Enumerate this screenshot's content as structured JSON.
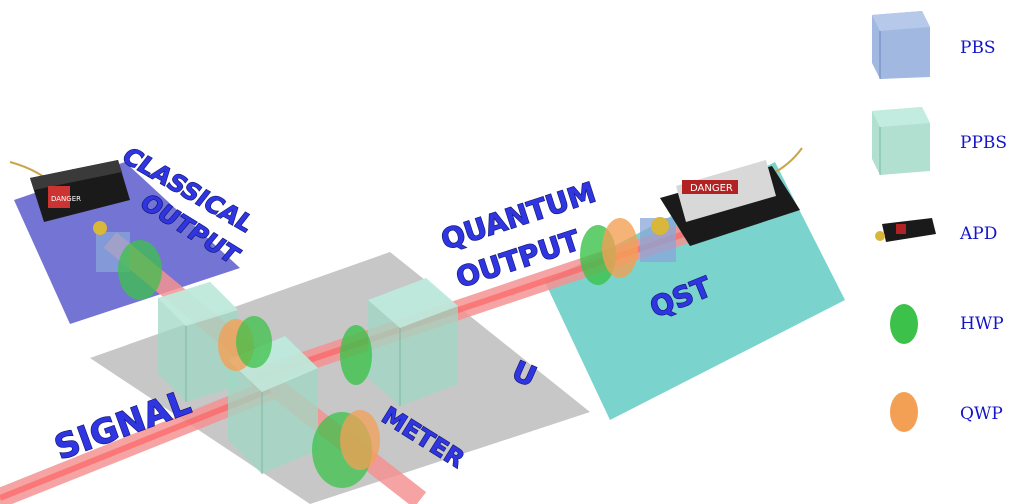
{
  "labels": {
    "classical_output": [
      "CLASSICAL",
      "OUTPUT"
    ],
    "quantum_output": [
      "QUANTUM",
      "OUTPUT"
    ],
    "signal": "SIGNAL",
    "meter": "METER",
    "u": "U",
    "qst": "QST",
    "danger": "DANGER"
  },
  "legend": [
    {
      "label": "PBS",
      "icon": "pbs-cube-icon",
      "color": "#8aa6d8"
    },
    {
      "label": "PPBS",
      "icon": "ppbs-cube-icon",
      "color": "#9fd8c4"
    },
    {
      "label": "APD",
      "icon": "apd-detector-icon",
      "color": "#222222"
    },
    {
      "label": "HWP",
      "icon": "hwp-plate-icon",
      "color": "#3cc24a"
    },
    {
      "label": "QWP",
      "icon": "qwp-plate-icon",
      "color": "#f3a055"
    }
  ],
  "colors": {
    "beam": "#f07f7f",
    "classical_platform": "#5c5ccc",
    "quantum_platform": "#3fc0b8",
    "table": "#b8b8b8",
    "label": "#2f35e0"
  }
}
